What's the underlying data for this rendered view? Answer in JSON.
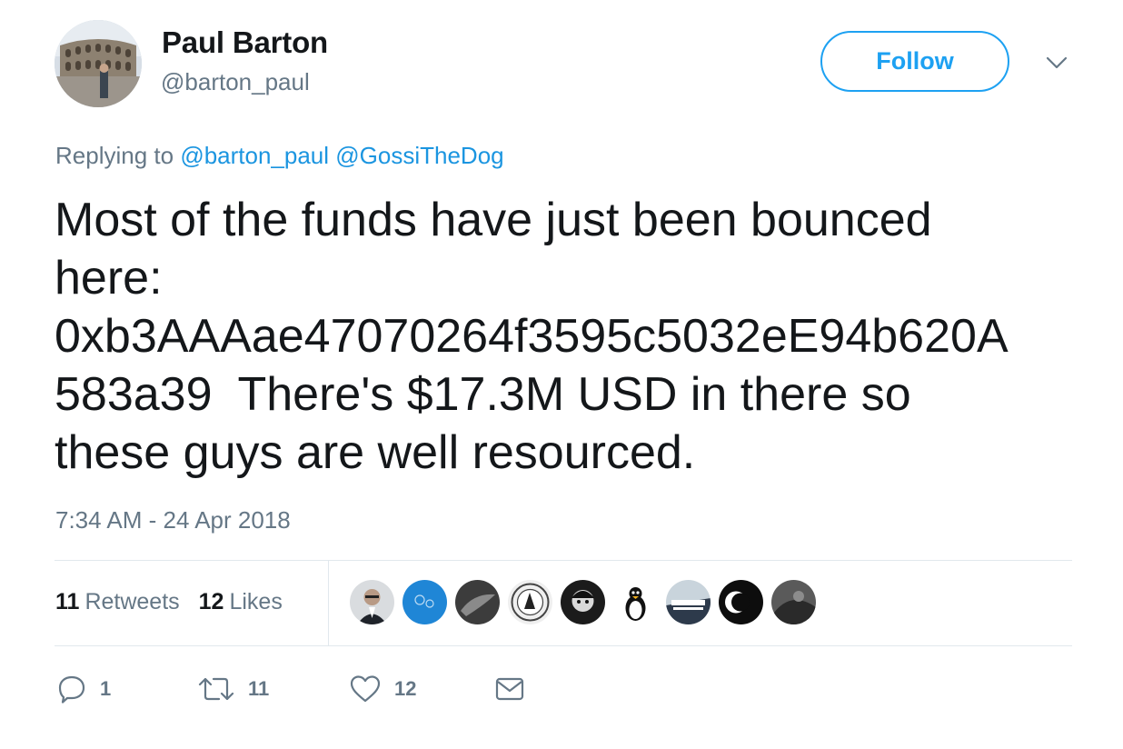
{
  "author": {
    "name": "Paul Barton",
    "handle": "@barton_paul"
  },
  "follow_label": "Follow",
  "replying": {
    "prefix": "Replying to",
    "mentions": [
      "@barton_paul",
      "@GossiTheDog"
    ]
  },
  "tweet": {
    "lines": [
      "Most of the funds have just been bounced",
      "here:",
      "0xb3AAAae47070264f3595c5032eE94b620A",
      "583a39  There's $17.3M USD in there so",
      "these guys are well resourced."
    ]
  },
  "timestamp": "7:34 AM - 24 Apr 2018",
  "stats": {
    "retweets_count": "11",
    "retweets_label": "Retweets",
    "likes_count": "12",
    "likes_label": "Likes"
  },
  "actions": {
    "reply_count": "1",
    "retweet_count": "11",
    "like_count": "12"
  },
  "colors": {
    "accent": "#1da1f2",
    "link": "#1b95e0",
    "text": "#14171a",
    "muted": "#657786",
    "divider": "#e1e8ed"
  }
}
